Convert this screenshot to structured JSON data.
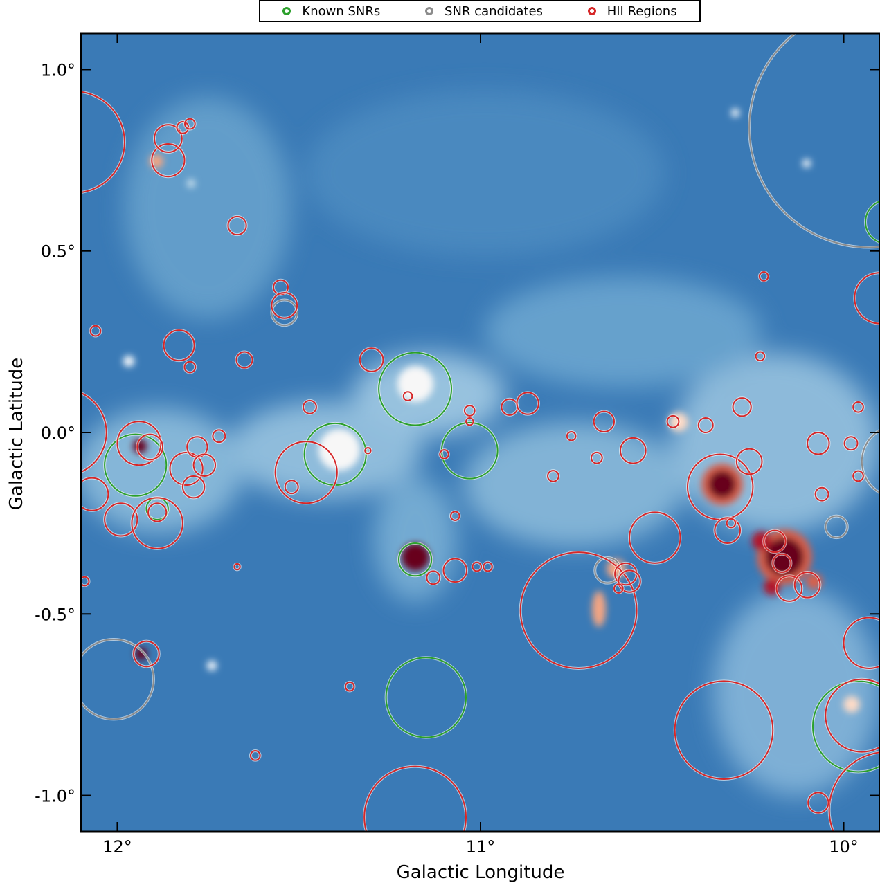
{
  "chart_data": {
    "type": "scatter",
    "xlabel": "Galactic Longitude",
    "ylabel": "Galactic Latitude",
    "xlim": [
      12.1,
      9.9
    ],
    "ylim": [
      -1.1,
      1.1
    ],
    "x_ticks": [
      12,
      11,
      10
    ],
    "x_tick_labels": [
      "12°",
      "11°",
      "10°"
    ],
    "y_ticks": [
      1.0,
      0.5,
      0.0,
      -0.5,
      -1.0
    ],
    "y_tick_labels": [
      "1.0°",
      "0.5°",
      "0.0°",
      "-0.5°",
      "-1.0°"
    ],
    "legend_position": "top-center, above plot",
    "background": "blue-white-red intensity map",
    "colors": {
      "known_snr": "#2ca02c",
      "snr_candidate": "#8c8c8c",
      "hii_region": "#d62728",
      "map_background": "#3b7cb8"
    },
    "series": [
      {
        "name": "Known SNRs",
        "color": "#2ca02c",
        "circles": [
          {
            "l": 11.18,
            "b": 0.12,
            "r": 0.1
          },
          {
            "l": 11.4,
            "b": -0.06,
            "r": 0.085
          },
          {
            "l": 11.03,
            "b": -0.05,
            "r": 0.077
          },
          {
            "l": 11.95,
            "b": -0.09,
            "r": 0.085
          },
          {
            "l": 11.18,
            "b": -0.35,
            "r": 0.045
          },
          {
            "l": 11.15,
            "b": -0.73,
            "r": 0.11
          },
          {
            "l": 9.96,
            "b": -0.81,
            "r": 0.125
          },
          {
            "l": 11.89,
            "b": -0.21,
            "r": 0.03
          },
          {
            "l": 9.88,
            "b": 0.58,
            "r": 0.06
          }
        ]
      },
      {
        "name": "SNR candidates",
        "color": "#8c8c8c",
        "circles": [
          {
            "l": 9.93,
            "b": 0.84,
            "r": 0.33
          },
          {
            "l": 12.01,
            "b": -0.68,
            "r": 0.11
          },
          {
            "l": 11.54,
            "b": 0.33,
            "r": 0.035
          },
          {
            "l": 10.65,
            "b": -0.38,
            "r": 0.035
          },
          {
            "l": 10.02,
            "b": -0.26,
            "r": 0.03
          },
          {
            "l": 9.85,
            "b": -0.08,
            "r": 0.1
          }
        ]
      },
      {
        "name": "HII Regions",
        "color": "#d62728",
        "circles": [
          {
            "l": 12.12,
            "b": 0.8,
            "r": 0.14
          },
          {
            "l": 11.86,
            "b": 0.75,
            "r": 0.045
          },
          {
            "l": 11.86,
            "b": 0.81,
            "r": 0.038
          },
          {
            "l": 11.82,
            "b": 0.84,
            "r": 0.016
          },
          {
            "l": 11.8,
            "b": 0.85,
            "r": 0.014
          },
          {
            "l": 11.67,
            "b": 0.57,
            "r": 0.025
          },
          {
            "l": 11.55,
            "b": 0.4,
            "r": 0.02
          },
          {
            "l": 11.54,
            "b": 0.35,
            "r": 0.035
          },
          {
            "l": 11.83,
            "b": 0.24,
            "r": 0.042
          },
          {
            "l": 11.8,
            "b": 0.18,
            "r": 0.015
          },
          {
            "l": 11.65,
            "b": 0.2,
            "r": 0.022
          },
          {
            "l": 12.06,
            "b": 0.28,
            "r": 0.014
          },
          {
            "l": 11.3,
            "b": 0.2,
            "r": 0.032
          },
          {
            "l": 11.47,
            "b": 0.07,
            "r": 0.018
          },
          {
            "l": 12.15,
            "b": 0.0,
            "r": 0.12
          },
          {
            "l": 11.94,
            "b": -0.03,
            "r": 0.06
          },
          {
            "l": 11.91,
            "b": -0.04,
            "r": 0.035
          },
          {
            "l": 11.81,
            "b": -0.1,
            "r": 0.045
          },
          {
            "l": 11.78,
            "b": -0.04,
            "r": 0.028
          },
          {
            "l": 11.76,
            "b": -0.09,
            "r": 0.03
          },
          {
            "l": 11.72,
            "b": -0.01,
            "r": 0.017
          },
          {
            "l": 12.07,
            "b": -0.17,
            "r": 0.045
          },
          {
            "l": 11.99,
            "b": -0.24,
            "r": 0.045
          },
          {
            "l": 11.89,
            "b": -0.25,
            "r": 0.07
          },
          {
            "l": 11.89,
            "b": -0.22,
            "r": 0.025
          },
          {
            "l": 11.79,
            "b": -0.15,
            "r": 0.03
          },
          {
            "l": 11.48,
            "b": -0.11,
            "r": 0.085
          },
          {
            "l": 11.52,
            "b": -0.15,
            "r": 0.018
          },
          {
            "l": 11.2,
            "b": 0.1,
            "r": 0.012
          },
          {
            "l": 11.03,
            "b": 0.06,
            "r": 0.014
          },
          {
            "l": 11.03,
            "b": 0.03,
            "r": 0.01
          },
          {
            "l": 11.1,
            "b": -0.06,
            "r": 0.012
          },
          {
            "l": 11.07,
            "b": -0.23,
            "r": 0.012
          },
          {
            "l": 10.92,
            "b": 0.07,
            "r": 0.022
          },
          {
            "l": 10.87,
            "b": 0.08,
            "r": 0.03
          },
          {
            "l": 10.8,
            "b": -0.12,
            "r": 0.015
          },
          {
            "l": 10.75,
            "b": -0.01,
            "r": 0.012
          },
          {
            "l": 10.68,
            "b": -0.07,
            "r": 0.015
          },
          {
            "l": 10.66,
            "b": 0.03,
            "r": 0.028
          },
          {
            "l": 10.58,
            "b": -0.05,
            "r": 0.035
          },
          {
            "l": 10.52,
            "b": -0.29,
            "r": 0.07
          },
          {
            "l": 11.07,
            "b": -0.38,
            "r": 0.032
          },
          {
            "l": 11.01,
            "b": -0.37,
            "r": 0.012
          },
          {
            "l": 10.98,
            "b": -0.37,
            "r": 0.012
          },
          {
            "l": 10.73,
            "b": -0.49,
            "r": 0.16
          },
          {
            "l": 10.6,
            "b": -0.39,
            "r": 0.03
          },
          {
            "l": 10.59,
            "b": -0.41,
            "r": 0.03
          },
          {
            "l": 10.62,
            "b": -0.43,
            "r": 0.012
          },
          {
            "l": 10.34,
            "b": -0.15,
            "r": 0.09
          },
          {
            "l": 10.32,
            "b": -0.27,
            "r": 0.035
          },
          {
            "l": 10.26,
            "b": -0.08,
            "r": 0.035
          },
          {
            "l": 10.28,
            "b": 0.07,
            "r": 0.025
          },
          {
            "l": 10.23,
            "b": 0.21,
            "r": 0.012
          },
          {
            "l": 10.22,
            "b": 0.43,
            "r": 0.012
          },
          {
            "l": 10.19,
            "b": -0.3,
            "r": 0.03
          },
          {
            "l": 10.17,
            "b": -0.36,
            "r": 0.025
          },
          {
            "l": 10.15,
            "b": -0.43,
            "r": 0.035
          },
          {
            "l": 10.1,
            "b": -0.42,
            "r": 0.035
          },
          {
            "l": 10.07,
            "b": -0.03,
            "r": 0.03
          },
          {
            "l": 10.06,
            "b": -0.17,
            "r": 0.018
          },
          {
            "l": 9.98,
            "b": -0.03,
            "r": 0.018
          },
          {
            "l": 9.96,
            "b": 0.07,
            "r": 0.014
          },
          {
            "l": 9.96,
            "b": -0.12,
            "r": 0.014
          },
          {
            "l": 9.9,
            "b": 0.37,
            "r": 0.07
          },
          {
            "l": 9.93,
            "b": -0.58,
            "r": 0.07
          },
          {
            "l": 9.95,
            "b": -0.78,
            "r": 0.1
          },
          {
            "l": 10.33,
            "b": -0.82,
            "r": 0.135
          },
          {
            "l": 9.88,
            "b": -1.04,
            "r": 0.16
          },
          {
            "l": 10.07,
            "b": -1.02,
            "r": 0.028
          },
          {
            "l": 11.18,
            "b": -1.06,
            "r": 0.14
          },
          {
            "l": 11.36,
            "b": -0.7,
            "r": 0.012
          },
          {
            "l": 11.62,
            "b": -0.89,
            "r": 0.013
          },
          {
            "l": 11.92,
            "b": -0.61,
            "r": 0.035
          },
          {
            "l": 12.09,
            "b": -0.41,
            "r": 0.012
          },
          {
            "l": 11.67,
            "b": -0.37,
            "r": 0.008
          },
          {
            "l": 11.31,
            "b": -0.05,
            "r": 0.008
          },
          {
            "l": 10.47,
            "b": 0.03,
            "r": 0.016
          },
          {
            "l": 10.38,
            "b": 0.02,
            "r": 0.02
          },
          {
            "l": 10.31,
            "b": -0.25,
            "r": 0.012
          },
          {
            "l": 11.13,
            "b": -0.4,
            "r": 0.018
          }
        ]
      }
    ]
  },
  "legend": {
    "items": [
      {
        "label": "Known SNRs",
        "color": "#2ca02c"
      },
      {
        "label": "SNR candidates",
        "color": "#8c8c8c"
      },
      {
        "label": "HII Regions",
        "color": "#d62728"
      }
    ]
  }
}
